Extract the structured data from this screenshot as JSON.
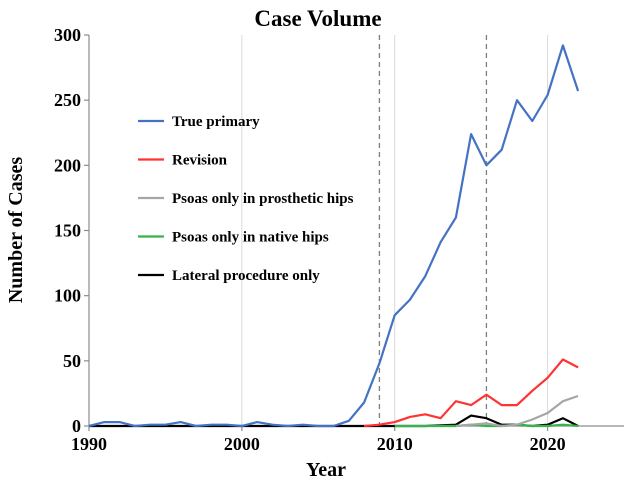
{
  "chart_data": {
    "type": "line",
    "title": "Case Volume",
    "xlabel": "Year",
    "ylabel": "Number of Cases",
    "xlim": [
      1990,
      2025
    ],
    "ylim": [
      0,
      300
    ],
    "xticks": [
      1990,
      2000,
      2010,
      2020
    ],
    "yticks": [
      0,
      50,
      100,
      150,
      200,
      250,
      300
    ],
    "grid": "vertical",
    "legend_position": "left-center",
    "reference_lines_x": [
      2009,
      2016
    ],
    "series": [
      {
        "name": "True primary",
        "color": "#4472c4",
        "x": [
          1990,
          1991,
          1992,
          1993,
          1994,
          1995,
          1996,
          1997,
          1998,
          1999,
          2000,
          2001,
          2002,
          2003,
          2004,
          2005,
          2006,
          2007,
          2008,
          2009,
          2010,
          2011,
          2012,
          2013,
          2014,
          2015,
          2016,
          2017,
          2018,
          2019,
          2020,
          2021,
          2022
        ],
        "y": [
          0,
          3,
          3,
          0,
          1,
          1,
          3,
          0,
          1,
          1,
          0,
          3,
          1,
          0,
          1,
          0,
          0,
          4,
          18,
          48,
          85,
          97,
          115,
          141,
          160,
          224,
          200,
          212,
          250,
          234,
          254,
          292,
          257
        ]
      },
      {
        "name": "Revision",
        "color": "#ff3333",
        "x": [
          2008,
          2009,
          2010,
          2011,
          2012,
          2013,
          2014,
          2015,
          2016,
          2017,
          2018,
          2019,
          2020,
          2021,
          2022
        ],
        "y": [
          0,
          1,
          3,
          7,
          9,
          6,
          19,
          16,
          24,
          16,
          16,
          27,
          37,
          51,
          45
        ]
      },
      {
        "name": "Psoas only in prosthetic hips",
        "color": "#a6a6a6",
        "x": [
          2014,
          2015,
          2016,
          2017,
          2018,
          2019,
          2020,
          2021,
          2022
        ],
        "y": [
          0,
          1,
          2,
          0,
          1,
          5,
          10,
          19,
          23
        ]
      },
      {
        "name": "Psoas only in native hips",
        "color": "#33b54a",
        "x": [
          2010,
          2012,
          2014,
          2015,
          2016,
          2017,
          2018,
          2019,
          2020,
          2021,
          2022
        ],
        "y": [
          0,
          0,
          0,
          1,
          0,
          0,
          1,
          0,
          0,
          1,
          0
        ]
      },
      {
        "name": "Lateral procedure only",
        "color": "#000000",
        "x": [
          1990,
          1995,
          2000,
          2005,
          2008,
          2010,
          2012,
          2014,
          2015,
          2016,
          2017,
          2018,
          2019,
          2020,
          2021,
          2022
        ],
        "y": [
          0,
          0,
          0,
          0,
          0,
          0,
          0,
          1,
          8,
          6,
          1,
          1,
          0,
          1,
          6,
          0
        ]
      }
    ]
  }
}
